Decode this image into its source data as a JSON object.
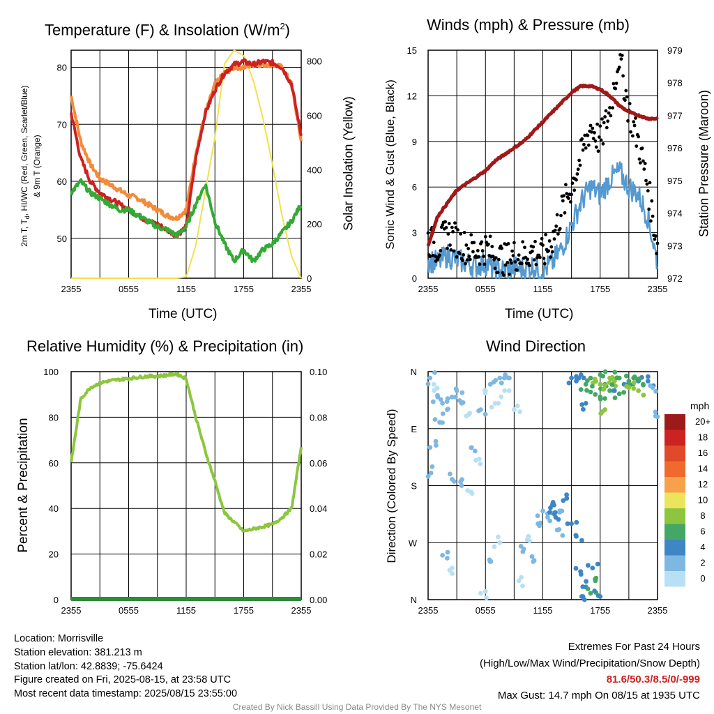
{
  "colors": {
    "red": "#cc2222",
    "green": "#33aa33",
    "orange": "#f58a38",
    "yellow": "#f3e04c",
    "blue": "#5599d0",
    "maroon": "#a01818",
    "humidity": "#8cc63f",
    "precip": "#2e8b3a",
    "highlight": "#cc2222",
    "credit": "#888888"
  },
  "panels": {
    "temperature": {
      "title": "Temperature (F) & Insolation (W/m",
      "title_sup": "2",
      "title_close": ")",
      "ylabel_left_line1": "2m T, T",
      "ylabel_left_sub": "d",
      "ylabel_left_line1b": ", HI/WC (Red, Green, Scarlet/Blue)",
      "ylabel_left_line2": "& 9m T (Orange)",
      "ylabel_right": "Solar Insolation (Yellow)",
      "xlabel": "Time (UTC)"
    },
    "winds": {
      "title": "Winds (mph) & Pressure (mb)",
      "ylabel_left": "Sonic Wind & Gust (Blue, Black)",
      "ylabel_right": "Station Pressure (Maroon)",
      "xlabel": "Time (UTC)"
    },
    "humidity": {
      "title": "Relative Humidity (%) & Precipitation (in)",
      "ylabel_left": "Percent & Precipitation"
    },
    "direction": {
      "title": "Wind Direction",
      "ylabel_left": "Direction (Colored By Speed)",
      "legend_title": "mph",
      "legend_labels": [
        "20+",
        "18",
        "16",
        "14",
        "12",
        "10",
        "8",
        "6",
        "4",
        "2",
        "0"
      ],
      "legend_colors": [
        "#9c1a1a",
        "#cc2222",
        "#e04a2a",
        "#f06a2e",
        "#f7a24a",
        "#ece45a",
        "#8cc63f",
        "#44a864",
        "#3e86c4",
        "#7eb8e2",
        "#b8e0f5"
      ]
    }
  },
  "info": {
    "location": "Location: Morrisville",
    "elevation": "Station elevation: 381.213 m",
    "latlon": "Station lat/lon: 42.8839; -75.6424",
    "created": "Figure created on Fri, 2025-08-15, at 23:58 UTC",
    "recent": "Most recent data timestamp: 2025/08/15 23:55:00"
  },
  "extremes": {
    "title": "Extremes For Past 24 Hours",
    "subtitle": "(High/Low/Max Wind/Precipitation/Snow Depth)",
    "values": "81.6/50.3/8.5/0/-999",
    "max_gust": "Max Gust: 14.7 mph On 08/15 at 1935 UTC"
  },
  "credit": "Created By Nick Bassill Using Data Provided By The NYS Mesonet",
  "chart_data": [
    {
      "type": "line",
      "id": "temperature",
      "x_ticks": [
        "2355",
        "0555",
        "1155",
        "1755",
        "2355"
      ],
      "x": [
        0,
        1,
        2,
        3,
        4,
        5,
        6,
        7,
        8,
        9,
        10,
        11,
        12,
        13,
        14,
        15,
        16,
        17,
        18,
        19,
        20,
        21,
        22,
        23,
        24
      ],
      "x_unit": "hours since 2355 UTC",
      "ylim": [
        43,
        83
      ],
      "y_ticks": [
        50,
        60,
        70,
        80
      ],
      "y2lim": [
        0,
        840
      ],
      "y2_ticks": [
        0,
        200,
        400,
        600,
        800
      ],
      "series": [
        {
          "name": "2m T (Red)",
          "axis": "left",
          "color": "red",
          "values": [
            72,
            64,
            60,
            58,
            57,
            56,
            55,
            54,
            53,
            52.5,
            51.5,
            50.5,
            52,
            64,
            72,
            76,
            79,
            80.5,
            81,
            80.5,
            81,
            80.8,
            80,
            77,
            68
          ]
        },
        {
          "name": "Td (Green)",
          "axis": "left",
          "color": "green",
          "values": [
            58,
            60,
            58,
            57,
            56,
            55,
            55,
            54,
            53,
            52,
            51.5,
            50.5,
            52,
            56,
            59.5,
            53,
            49,
            46,
            48,
            46,
            48,
            49,
            51,
            53,
            56
          ]
        },
        {
          "name": "9m T (Orange)",
          "axis": "left",
          "color": "orange",
          "values": [
            75,
            67,
            63,
            60.5,
            59.5,
            58.5,
            57.5,
            57,
            56,
            55,
            54,
            53.5,
            55,
            65,
            72,
            77,
            79,
            80,
            80,
            80.5,
            80.5,
            80.5,
            80,
            77,
            67
          ]
        },
        {
          "name": "Solar Insolation (Yellow)",
          "axis": "right",
          "color": "yellow",
          "values": [
            0,
            0,
            0,
            0,
            0,
            0,
            0,
            0,
            0,
            0,
            0,
            0,
            5,
            120,
            320,
            520,
            790,
            840,
            820,
            730,
            590,
            420,
            230,
            80,
            0
          ]
        }
      ]
    },
    {
      "type": "line",
      "id": "winds",
      "x_ticks": [
        "2355",
        "0555",
        "1155",
        "1755",
        "2355"
      ],
      "x": [
        0,
        1,
        2,
        3,
        4,
        5,
        6,
        7,
        8,
        9,
        10,
        11,
        12,
        13,
        14,
        15,
        16,
        17,
        18,
        19,
        20,
        21,
        22,
        23,
        24
      ],
      "x_unit": "hours since 2355 UTC",
      "ylim": [
        0,
        15
      ],
      "y_ticks": [
        0,
        3,
        6,
        9,
        12,
        15
      ],
      "y2lim": [
        972,
        979
      ],
      "y2_ticks": [
        972,
        973,
        974,
        975,
        976,
        977,
        978,
        979
      ],
      "series": [
        {
          "name": "Sonic Wind (Blue)",
          "axis": "left",
          "color": "blue",
          "values": [
            1.2,
            1.0,
            1.5,
            1.2,
            1.0,
            0.8,
            1.0,
            0.6,
            0.5,
            0.7,
            0.6,
            0.8,
            0.5,
            1.0,
            2.0,
            3.5,
            5.0,
            6.0,
            5.5,
            6.5,
            7.0,
            6.0,
            5.5,
            4.0,
            1.0
          ]
        },
        {
          "name": "Gust (Black)",
          "axis": "left",
          "color": "black",
          "values": [
            2.5,
            2.0,
            3.0,
            2.5,
            2.0,
            1.8,
            2.0,
            1.5,
            1.2,
            1.5,
            1.5,
            1.8,
            1.5,
            2.5,
            4.5,
            6.0,
            8.0,
            10.0,
            9.0,
            11.0,
            14.7,
            11.0,
            9.0,
            6.0,
            2.0
          ]
        },
        {
          "name": "Station Pressure (Maroon)",
          "axis": "right",
          "color": "maroon",
          "values": [
            973.0,
            973.9,
            974.3,
            974.7,
            974.9,
            975.1,
            975.3,
            975.6,
            975.8,
            976.0,
            976.2,
            976.5,
            976.8,
            977.1,
            977.4,
            977.7,
            977.9,
            977.9,
            977.8,
            977.6,
            977.3,
            977.1,
            977.0,
            976.9,
            976.9
          ]
        }
      ]
    },
    {
      "type": "line",
      "id": "humidity",
      "x_ticks": [
        "2355",
        "0555",
        "1155",
        "1755",
        "2355"
      ],
      "x": [
        0,
        1,
        2,
        3,
        4,
        5,
        6,
        7,
        8,
        9,
        10,
        11,
        12,
        13,
        14,
        15,
        16,
        17,
        18,
        19,
        20,
        21,
        22,
        23,
        24
      ],
      "x_unit": "hours since 2355 UTC",
      "ylim": [
        0,
        100
      ],
      "y_ticks": [
        0,
        20,
        40,
        60,
        80,
        100
      ],
      "y2lim": [
        0,
        0.1
      ],
      "y2_ticks": [
        "0.00",
        "0.02",
        "0.04",
        "0.06",
        "0.08",
        "0.10"
      ],
      "series": [
        {
          "name": "Relative Humidity",
          "axis": "left",
          "color": "humidity",
          "values": [
            60,
            88,
            93,
            95,
            96,
            96.5,
            97,
            97.5,
            98,
            98,
            98.5,
            99,
            97,
            80,
            65,
            52,
            38,
            34,
            30,
            31,
            32,
            33,
            36,
            40,
            67
          ]
        },
        {
          "name": "Precipitation",
          "axis": "right",
          "color": "precip",
          "values": [
            0,
            0,
            0,
            0,
            0,
            0,
            0,
            0,
            0,
            0,
            0,
            0,
            0,
            0,
            0,
            0,
            0,
            0,
            0,
            0,
            0,
            0,
            0,
            0,
            0
          ]
        }
      ]
    },
    {
      "type": "scatter",
      "id": "direction",
      "x_ticks": [
        "2355",
        "0555",
        "1155",
        "1755",
        "2355"
      ],
      "x_unit": "hours since 2355 UTC",
      "y_ticks": [
        "N",
        "W",
        "S",
        "E",
        "N"
      ],
      "ylim": [
        0,
        360
      ],
      "y_unit": "degrees (N=0/360 at bottom/top)",
      "points": [
        {
          "x": 0.2,
          "dir": 350,
          "speed": 1
        },
        {
          "x": 0.6,
          "dir": 340,
          "speed": 0.5
        },
        {
          "x": 1.0,
          "dir": 320,
          "speed": 2
        },
        {
          "x": 1.5,
          "dir": 310,
          "speed": 1
        },
        {
          "x": 2.0,
          "dir": 300,
          "speed": 2
        },
        {
          "x": 2.5,
          "dir": 320,
          "speed": 1
        },
        {
          "x": 3.0,
          "dir": 330,
          "speed": 2
        },
        {
          "x": 3.5,
          "dir": 310,
          "speed": 1
        },
        {
          "x": 4.0,
          "dir": 290,
          "speed": 0.5
        },
        {
          "x": 0.3,
          "dir": 200,
          "speed": 1
        },
        {
          "x": 0.8,
          "dir": 250,
          "speed": 1
        },
        {
          "x": 1.2,
          "dir": 280,
          "speed": 2
        },
        {
          "x": 4.5,
          "dir": 240,
          "speed": 1
        },
        {
          "x": 5.0,
          "dir": 220,
          "speed": 0.5
        },
        {
          "x": 5.5,
          "dir": 300,
          "speed": 1
        },
        {
          "x": 6.0,
          "dir": 330,
          "speed": 0.5
        },
        {
          "x": 6.5,
          "dir": 340,
          "speed": 1
        },
        {
          "x": 7.0,
          "dir": 310,
          "speed": 0.5
        },
        {
          "x": 7.5,
          "dir": 350,
          "speed": 1
        },
        {
          "x": 8.0,
          "dir": 330,
          "speed": 0.5
        },
        {
          "x": 8.5,
          "dir": 350,
          "speed": 1
        },
        {
          "x": 9.0,
          "dir": 300,
          "speed": 0.5
        },
        {
          "x": 2.5,
          "dir": 190,
          "speed": 2
        },
        {
          "x": 3.5,
          "dir": 180,
          "speed": 1
        },
        {
          "x": 4.5,
          "dir": 170,
          "speed": 0.5
        },
        {
          "x": 1.5,
          "dir": 70,
          "speed": 1
        },
        {
          "x": 2.5,
          "dir": 50,
          "speed": 0.5
        },
        {
          "x": 5.5,
          "dir": 10,
          "speed": 0.5
        },
        {
          "x": 6.5,
          "dir": 60,
          "speed": 1
        },
        {
          "x": 7.5,
          "dir": 90,
          "speed": 0.5
        },
        {
          "x": 9.5,
          "dir": 30,
          "speed": 0.5
        },
        {
          "x": 10.0,
          "dir": 80,
          "speed": 1
        },
        {
          "x": 10.5,
          "dir": 100,
          "speed": 0.5
        },
        {
          "x": 11.0,
          "dir": 60,
          "speed": 1
        },
        {
          "x": 11.5,
          "dir": 120,
          "speed": 1
        },
        {
          "x": 12.0,
          "dir": 140,
          "speed": 2
        },
        {
          "x": 12.5,
          "dir": 130,
          "speed": 2
        },
        {
          "x": 13.0,
          "dir": 150,
          "speed": 3
        },
        {
          "x": 13.5,
          "dir": 110,
          "speed": 2
        },
        {
          "x": 14.0,
          "dir": 140,
          "speed": 2
        },
        {
          "x": 14.5,
          "dir": 160,
          "speed": 3
        },
        {
          "x": 12.8,
          "dir": 145,
          "speed": 4
        },
        {
          "x": 13.2,
          "dir": 135,
          "speed": 3
        },
        {
          "x": 15.0,
          "dir": 120,
          "speed": 4
        },
        {
          "x": 15.5,
          "dir": 100,
          "speed": 3
        },
        {
          "x": 16.0,
          "dir": 40,
          "speed": 4
        },
        {
          "x": 16.5,
          "dir": 20,
          "speed": 4
        },
        {
          "x": 17.0,
          "dir": 10,
          "speed": 5
        },
        {
          "x": 17.5,
          "dir": 30,
          "speed": 6
        },
        {
          "x": 16.2,
          "dir": 5,
          "speed": 4
        },
        {
          "x": 17.2,
          "dir": 50,
          "speed": 3
        },
        {
          "x": 18.0,
          "dir": 5,
          "speed": 4
        },
        {
          "x": 15.0,
          "dir": 350,
          "speed": 4
        },
        {
          "x": 15.5,
          "dir": 345,
          "speed": 3
        },
        {
          "x": 16.0,
          "dir": 355,
          "speed": 4
        },
        {
          "x": 16.5,
          "dir": 340,
          "speed": 5
        },
        {
          "x": 17.0,
          "dir": 350,
          "speed": 6
        },
        {
          "x": 17.5,
          "dir": 345,
          "speed": 7
        },
        {
          "x": 18.0,
          "dir": 355,
          "speed": 5
        },
        {
          "x": 18.5,
          "dir": 340,
          "speed": 6
        },
        {
          "x": 19.0,
          "dir": 350,
          "speed": 8
        },
        {
          "x": 19.5,
          "dir": 345,
          "speed": 7
        },
        {
          "x": 20.0,
          "dir": 350,
          "speed": 5
        },
        {
          "x": 20.5,
          "dir": 340,
          "speed": 4
        },
        {
          "x": 21.0,
          "dir": 345,
          "speed": 6
        },
        {
          "x": 21.5,
          "dir": 350,
          "speed": 5
        },
        {
          "x": 22.0,
          "dir": 345,
          "speed": 4
        },
        {
          "x": 22.5,
          "dir": 340,
          "speed": 5
        },
        {
          "x": 23.0,
          "dir": 345,
          "speed": 3
        },
        {
          "x": 23.5,
          "dir": 335,
          "speed": 2
        },
        {
          "x": 18.0,
          "dir": 320,
          "speed": 6
        },
        {
          "x": 19.0,
          "dir": 330,
          "speed": 5
        },
        {
          "x": 18.5,
          "dir": 300,
          "speed": 7
        },
        {
          "x": 16.5,
          "dir": 310,
          "speed": 4
        },
        {
          "x": 20.0,
          "dir": 325,
          "speed": 6
        },
        {
          "x": 21.0,
          "dir": 335,
          "speed": 8
        },
        {
          "x": 22.0,
          "dir": 330,
          "speed": 7
        },
        {
          "x": 23.8,
          "dir": 290,
          "speed": 1
        },
        {
          "x": 19.5,
          "dir": 330,
          "speed": 4
        },
        {
          "x": 17.0,
          "dir": 328,
          "speed": 5
        },
        {
          "x": 18.0,
          "dir": 340,
          "speed": 7
        }
      ]
    }
  ]
}
